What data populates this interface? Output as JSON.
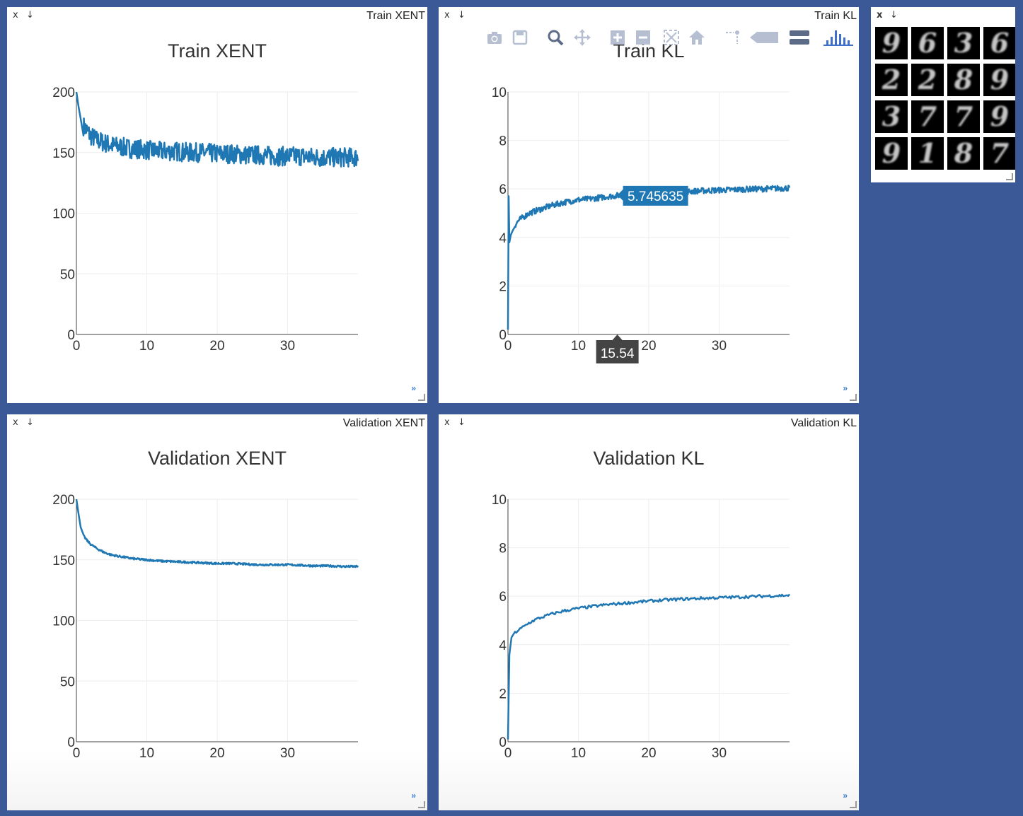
{
  "panes": {
    "train_xent": {
      "title": "Train XENT",
      "close": "x",
      "download": "↓",
      "expand": "»"
    },
    "train_kl": {
      "title": "Train KL",
      "close": "x",
      "download": "↓",
      "expand": "»"
    },
    "val_xent": {
      "title": "Validation XENT",
      "close": "x",
      "download": "↓",
      "expand": "»"
    },
    "val_kl": {
      "title": "Validation KL",
      "close": "x",
      "download": "↓",
      "expand": "»"
    },
    "images": {
      "close": "x",
      "download": "↓"
    }
  },
  "modebar": {
    "icons": [
      "camera-icon",
      "save-icon",
      "zoom-icon",
      "pan-icon",
      "zoom-in-icon",
      "zoom-out-icon",
      "autoscale-icon",
      "reset-axes-icon",
      "spike-lines-icon",
      "hover-closest-icon",
      "hover-compare-icon",
      "plotly-logo-icon"
    ]
  },
  "hover": {
    "y_label": "5.745635",
    "x_label": "15.54",
    "x": 15.54,
    "y": 5.745635
  },
  "images": {
    "digits": [
      "9",
      "6",
      "3",
      "6",
      "2",
      "2",
      "8",
      "9",
      "3",
      "7",
      "7",
      "9",
      "9",
      "1",
      "8",
      "7"
    ]
  },
  "colors": {
    "line": "#1f77b4",
    "background": "#3b5996",
    "grid": "#eeeeee"
  },
  "chart_data": [
    {
      "type": "line",
      "title": "Train XENT",
      "xlim": [
        0,
        40
      ],
      "ylim": [
        0,
        200
      ],
      "xticks": [
        0,
        10,
        20,
        30
      ],
      "yticks": [
        0,
        50,
        100,
        150,
        200
      ],
      "grid": true,
      "series": [
        {
          "x": [
            0,
            0.3,
            0.6,
            1,
            1.5,
            2,
            3,
            4,
            5,
            6,
            7,
            8,
            9,
            10,
            12,
            14,
            16,
            18,
            20,
            22,
            24,
            26,
            28,
            30,
            32,
            34,
            36,
            38,
            40
          ],
          "values": [
            200,
            188,
            178,
            172,
            168,
            164,
            160,
            158,
            156,
            155,
            154,
            153,
            153,
            152,
            151,
            151,
            150,
            150,
            149,
            149,
            148,
            148,
            147,
            147,
            147,
            146,
            146,
            146,
            146
          ],
          "noise": 8
        }
      ]
    },
    {
      "type": "line",
      "title": "Train KL",
      "xlim": [
        0,
        40
      ],
      "ylim": [
        0,
        10
      ],
      "xticks": [
        0,
        10,
        20,
        30
      ],
      "yticks": [
        0,
        2,
        4,
        6,
        8,
        10
      ],
      "grid": true,
      "series": [
        {
          "x": [
            0,
            0.1,
            0.2,
            0.4,
            0.7,
            1,
            1.5,
            2,
            3,
            4,
            5,
            6,
            8,
            10,
            12,
            14,
            16,
            18,
            20,
            22,
            24,
            26,
            28,
            30,
            32,
            34,
            36,
            38,
            40
          ],
          "values": [
            0.2,
            5.7,
            3.8,
            4.1,
            4.3,
            4.5,
            4.7,
            4.8,
            5.0,
            5.1,
            5.2,
            5.3,
            5.45,
            5.55,
            5.6,
            5.68,
            5.74,
            5.78,
            5.82,
            5.86,
            5.88,
            5.9,
            5.93,
            5.95,
            5.97,
            5.99,
            6.0,
            6.02,
            6.04
          ],
          "noise": 0.12
        }
      ]
    },
    {
      "type": "line",
      "title": "Validation XENT",
      "xlim": [
        0,
        40
      ],
      "ylim": [
        0,
        200
      ],
      "xticks": [
        0,
        10,
        20,
        30
      ],
      "yticks": [
        0,
        50,
        100,
        150,
        200
      ],
      "grid": true,
      "series": [
        {
          "x": [
            0,
            0.3,
            0.6,
            1,
            1.5,
            2,
            3,
            4,
            5,
            6,
            7,
            8,
            9,
            10,
            12,
            14,
            16,
            18,
            20,
            22,
            24,
            26,
            28,
            30,
            32,
            34,
            36,
            38,
            40
          ],
          "values": [
            200,
            188,
            177,
            170,
            166,
            163,
            159,
            156,
            154,
            153,
            152,
            151,
            150.5,
            150,
            149,
            148.5,
            148,
            147.5,
            147,
            147,
            146.5,
            146,
            146,
            146,
            145.5,
            145,
            145,
            144.5,
            144.5
          ],
          "noise": 0.8
        }
      ]
    },
    {
      "type": "line",
      "title": "Validation KL",
      "xlim": [
        0,
        40
      ],
      "ylim": [
        0,
        10
      ],
      "xticks": [
        0,
        10,
        20,
        30
      ],
      "yticks": [
        0,
        2,
        4,
        6,
        8,
        10
      ],
      "grid": true,
      "series": [
        {
          "x": [
            0,
            0.2,
            0.5,
            1,
            2,
            3,
            4,
            5,
            6,
            8,
            10,
            12,
            14,
            16,
            18,
            20,
            22,
            24,
            26,
            28,
            30,
            32,
            34,
            36,
            38,
            40
          ],
          "values": [
            0.1,
            3.6,
            4.3,
            4.5,
            4.7,
            4.9,
            5.05,
            5.15,
            5.25,
            5.4,
            5.5,
            5.58,
            5.65,
            5.7,
            5.75,
            5.8,
            5.84,
            5.87,
            5.9,
            5.92,
            5.94,
            5.96,
            5.98,
            6.0,
            6.02,
            6.04
          ],
          "noise": 0.06
        }
      ]
    }
  ]
}
